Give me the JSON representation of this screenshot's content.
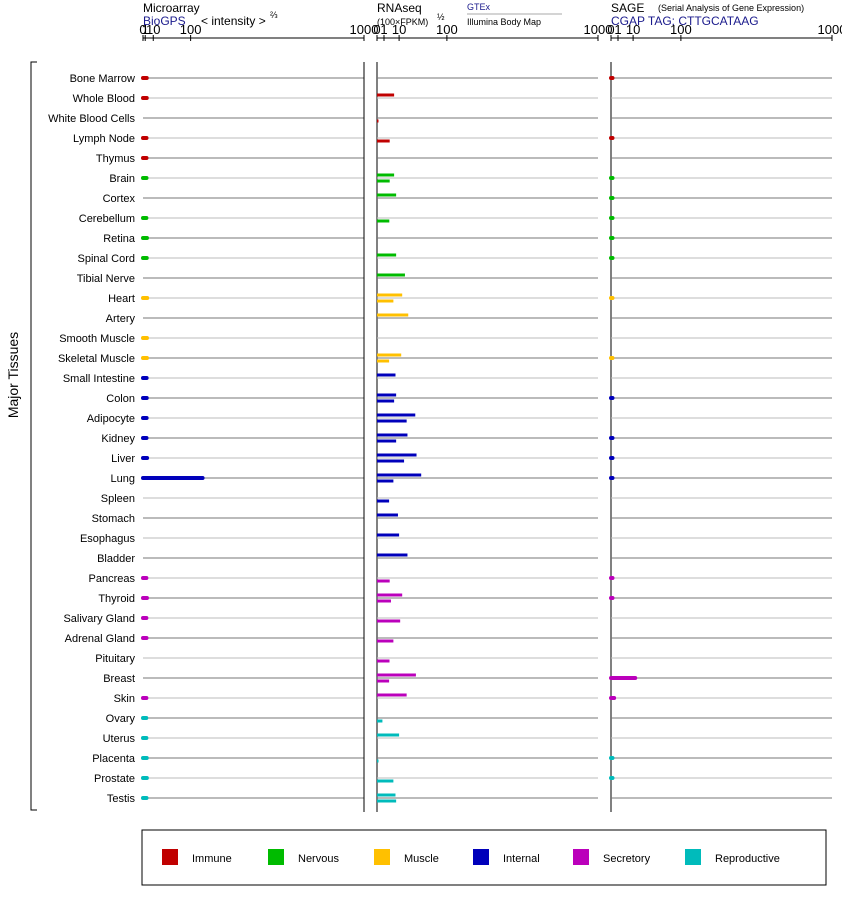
{
  "colors": {
    "Immune": "#c00000",
    "Nervous": "#00bb00",
    "Muscle": "#ffc000",
    "Internal": "#0000bb",
    "Secretory": "#bb00bb",
    "Reproductive": "#00bbbb"
  },
  "panels": {
    "microarray": {
      "title": "Microarray",
      "source": "BioGPS",
      "scale_label": "< intensity >",
      "scale_exp": "⅔",
      "ticks": [
        "0",
        "1",
        "10",
        "100",
        "1000"
      ]
    },
    "rnaseq": {
      "title": "RNAseq",
      "scale_label": "(100×FPKM)",
      "scale_exp": "½",
      "source1": "GTEx",
      "source2": "Illumina Body Map",
      "ticks": [
        "0",
        "1",
        "10",
        "100",
        "1000"
      ]
    },
    "sage": {
      "title": "SAGE",
      "subtitle": "(Serial Analysis of Gene Expression)",
      "tag": "CGAP TAG: CTTGCATAAG",
      "ticks": [
        "0",
        "1",
        "10",
        "100",
        "1000"
      ]
    }
  },
  "yaxis_label": "Major Tissues",
  "legend": [
    "Immune",
    "Nervous",
    "Muscle",
    "Internal",
    "Secretory",
    "Reproductive"
  ],
  "chart_data": {
    "type": "bar",
    "orientation": "horizontal",
    "x_scale": "power",
    "x_ticks": [
      0,
      1,
      10,
      100,
      1000
    ],
    "categories": [
      "Bone Marrow",
      "Whole Blood",
      "White Blood Cells",
      "Lymph Node",
      "Thymus",
      "Brain",
      "Cortex",
      "Cerebellum",
      "Retina",
      "Spinal Cord",
      "Tibial Nerve",
      "Heart",
      "Artery",
      "Smooth Muscle",
      "Skeletal Muscle",
      "Small Intestine",
      "Colon",
      "Adipocyte",
      "Kidney",
      "Liver",
      "Lung",
      "Spleen",
      "Stomach",
      "Esophagus",
      "Bladder",
      "Pancreas",
      "Thyroid",
      "Salivary Gland",
      "Adrenal Gland",
      "Pituitary",
      "Breast",
      "Skin",
      "Ovary",
      "Uterus",
      "Placenta",
      "Prostate",
      "Testis"
    ],
    "groups": [
      "Immune",
      "Immune",
      "Immune",
      "Immune",
      "Immune",
      "Nervous",
      "Nervous",
      "Nervous",
      "Nervous",
      "Nervous",
      "Nervous",
      "Muscle",
      "Muscle",
      "Muscle",
      "Muscle",
      "Internal",
      "Internal",
      "Internal",
      "Internal",
      "Internal",
      "Internal",
      "Internal",
      "Internal",
      "Internal",
      "Internal",
      "Secretory",
      "Secretory",
      "Secretory",
      "Secretory",
      "Secretory",
      "Secretory",
      "Secretory",
      "Reproductive",
      "Reproductive",
      "Reproductive",
      "Reproductive",
      "Reproductive"
    ],
    "series": [
      {
        "name": "Microarray",
        "values": [
          2.2,
          2.2,
          null,
          2.0,
          2.0,
          2.0,
          null,
          1.9,
          2.4,
          2.2,
          null,
          2.6,
          null,
          2.4,
          2.4,
          2.1,
          2.2,
          2.1,
          2.0,
          2.5,
          140,
          null,
          null,
          null,
          null,
          1.9,
          2.4,
          1.9,
          2.0,
          null,
          null,
          1.9,
          1.8,
          1.9,
          2.2,
          2.3,
          2.0
        ]
      },
      {
        "name": "GTEx",
        "values": [
          null,
          6,
          null,
          null,
          null,
          6,
          7.5,
          null,
          null,
          7.5,
          16,
          13,
          20,
          null,
          12,
          7,
          7.5,
          30,
          19,
          32,
          40,
          null,
          9,
          10,
          19,
          null,
          13,
          null,
          null,
          null,
          31,
          18,
          null,
          10,
          null,
          null,
          7
        ]
      },
      {
        "name": "Illumina Body Map",
        "values": [
          null,
          null,
          0.02,
          3.3,
          null,
          3.3,
          null,
          3.1,
          null,
          null,
          null,
          5.5,
          null,
          null,
          3.0,
          null,
          6.0,
          18,
          7.5,
          15,
          5.5,
          3.0,
          null,
          null,
          null,
          3.3,
          4.0,
          11,
          5.5,
          3.2,
          3.0,
          null,
          0.6,
          null,
          0.02,
          5.5,
          7.5
        ]
      },
      {
        "name": "SAGE",
        "values": [
          0.02,
          null,
          null,
          0.02,
          null,
          0.02,
          0.01,
          0.01,
          0.01,
          0.01,
          null,
          0.005,
          null,
          null,
          0.005,
          null,
          0.02,
          null,
          0.02,
          0.02,
          0.02,
          null,
          null,
          null,
          null,
          0.02,
          0.02,
          null,
          null,
          null,
          12,
          0.2,
          null,
          null,
          0.01,
          0.01,
          null
        ]
      }
    ]
  }
}
